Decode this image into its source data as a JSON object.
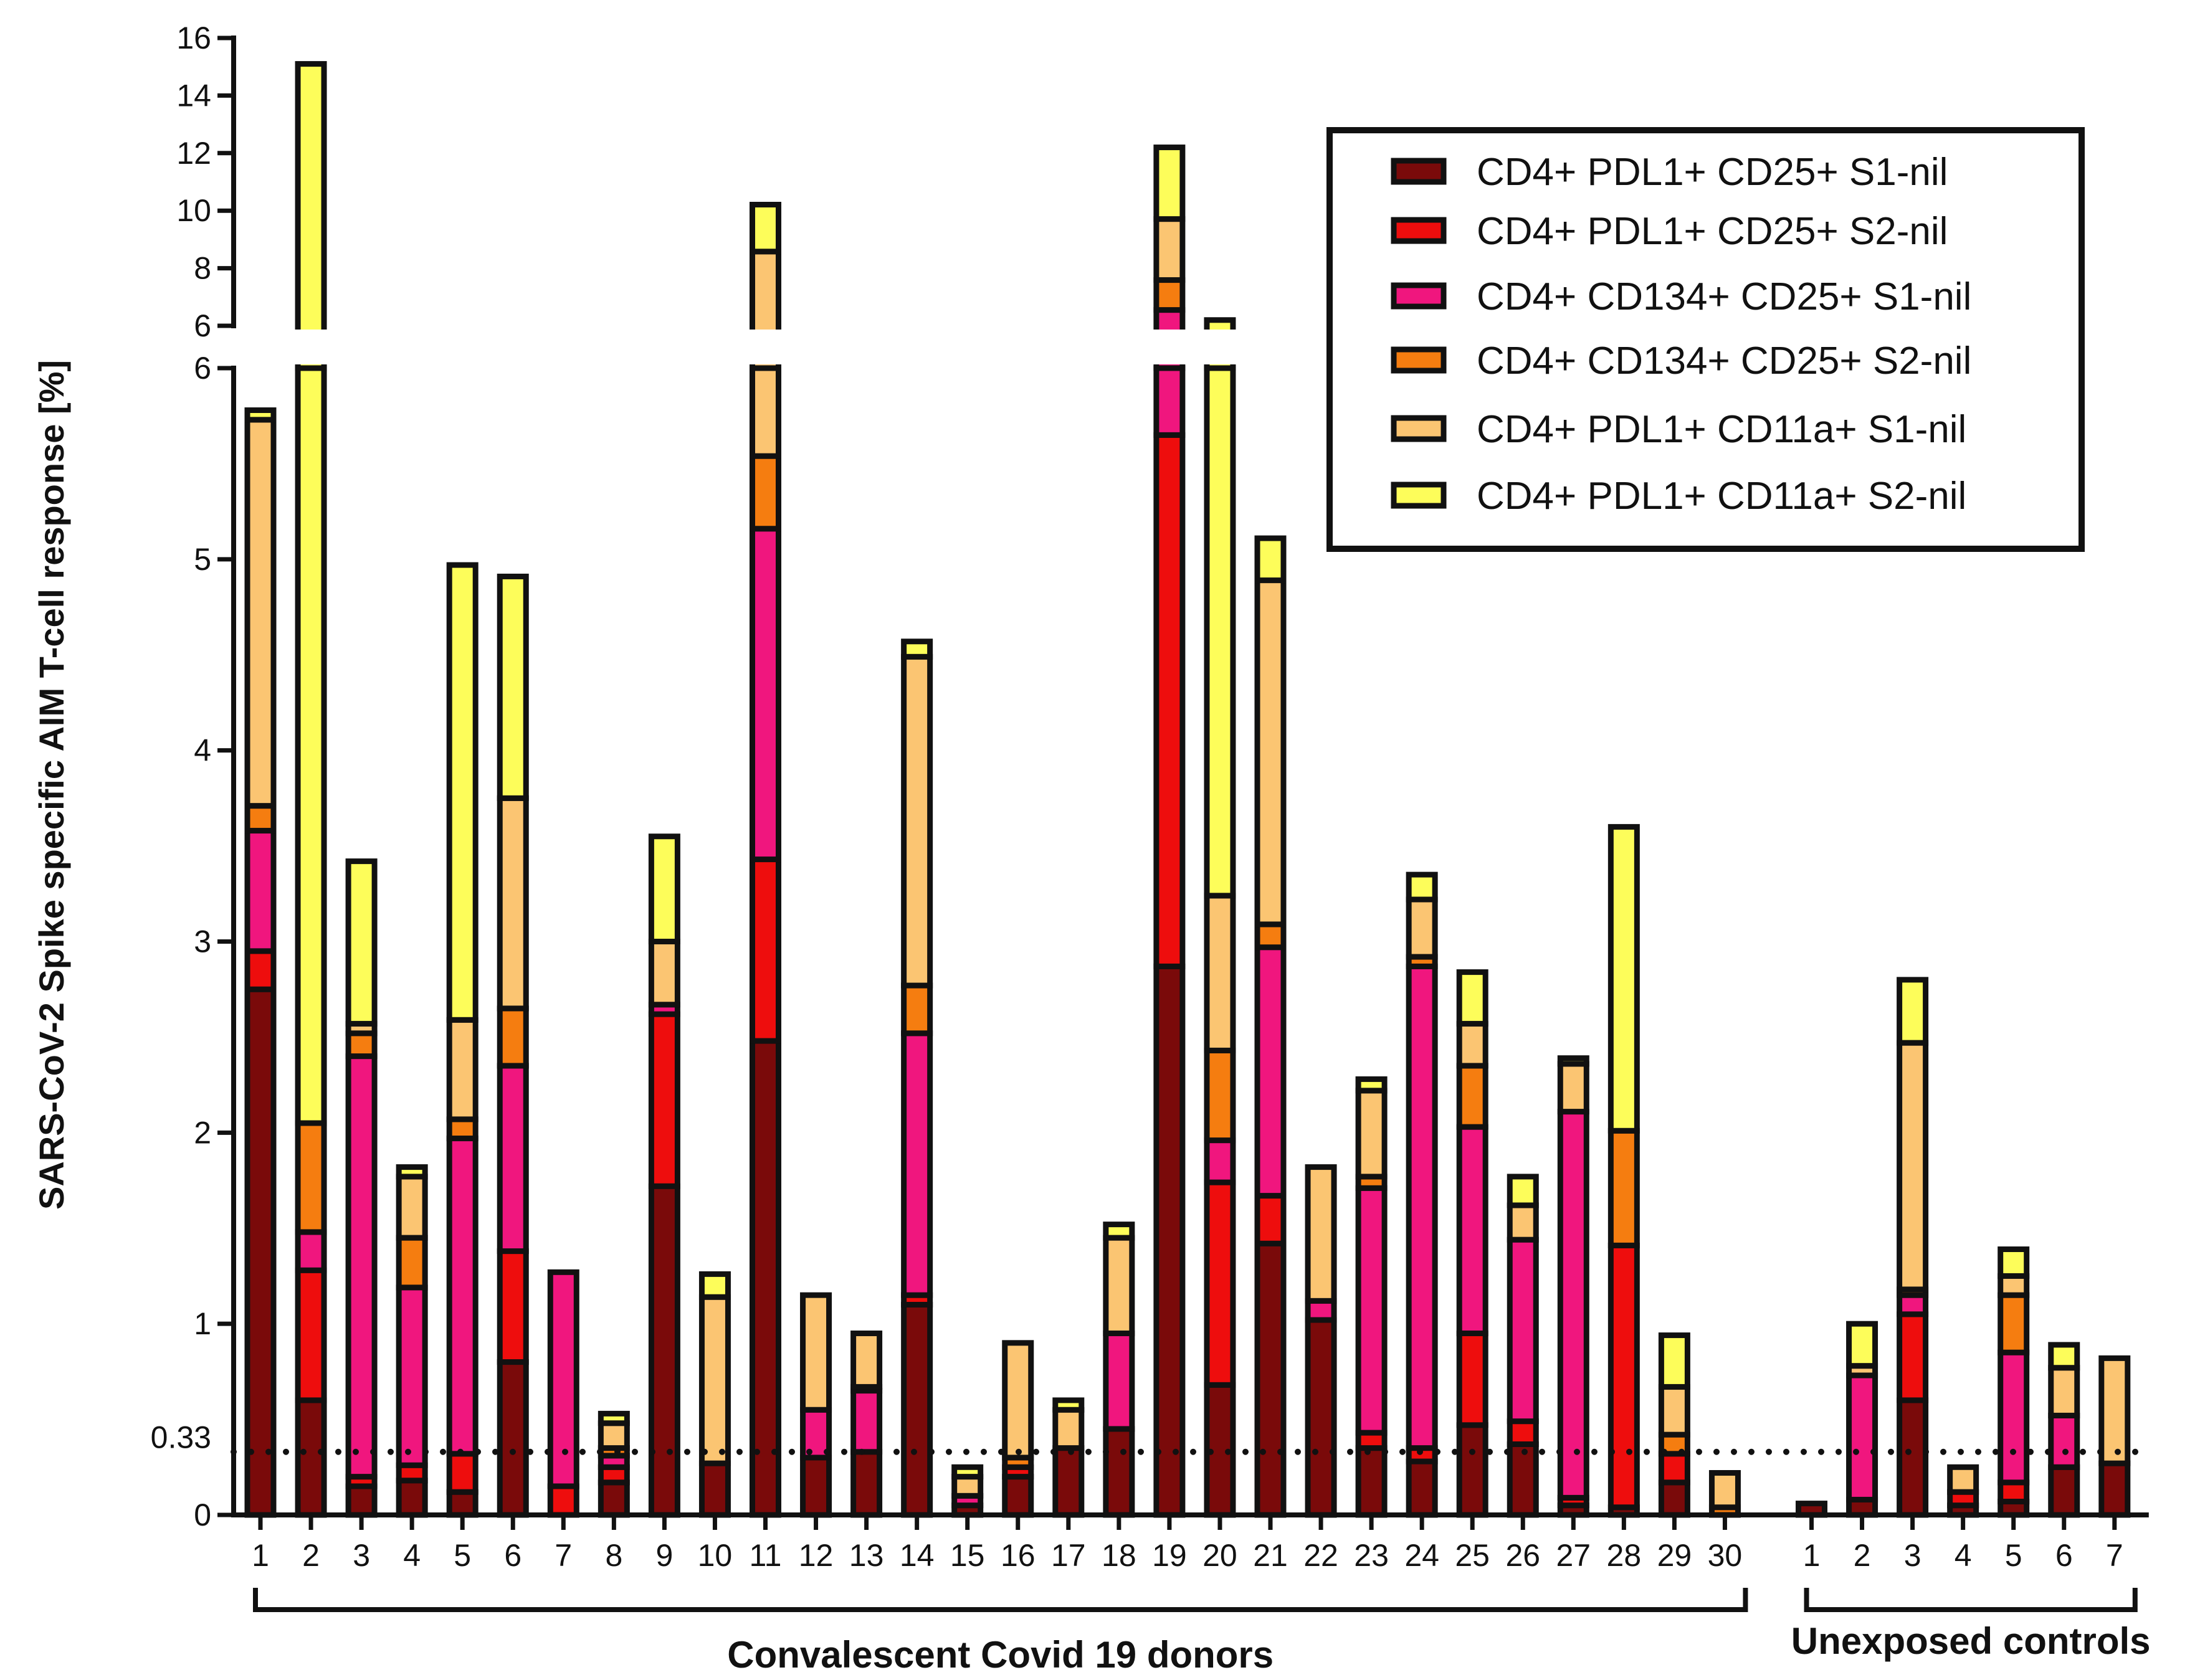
{
  "chart_data": {
    "type": "bar",
    "stacked": true,
    "ylabel": "SARS-CoV-2 Spike specific AIM T-cell response [%]",
    "y_axis_break": {
      "lower_range": [
        0,
        6
      ],
      "upper_range": [
        6,
        16
      ]
    },
    "y_ticks_lower": [
      0,
      1,
      2,
      3,
      4,
      5,
      6
    ],
    "y_ticks_upper": [
      6,
      8,
      10,
      12,
      14,
      16
    ],
    "reference_line": {
      "value": 0.33,
      "label": "0.33",
      "style": "dotted"
    },
    "groups": [
      {
        "name": "Convalescent Covid 19 donors",
        "categories": [
          "1",
          "2",
          "3",
          "4",
          "5",
          "6",
          "7",
          "8",
          "9",
          "10",
          "11",
          "12",
          "13",
          "14",
          "15",
          "16",
          "17",
          "18",
          "19",
          "20",
          "21",
          "22",
          "23",
          "24",
          "25",
          "26",
          "27",
          "28",
          "29",
          "30"
        ]
      },
      {
        "name": "Unexposed controls",
        "categories": [
          "1",
          "2",
          "3",
          "4",
          "5",
          "6",
          "7"
        ]
      }
    ],
    "series": [
      {
        "name": "CD4+ PDL1+ CD25+ S1-nil",
        "color": "#7a0a0a",
        "values": [
          2.75,
          0.6,
          0.15,
          0.18,
          0.12,
          0.8,
          0,
          0.17,
          1.72,
          0.27,
          2.48,
          0.3,
          0.33,
          1.1,
          0.05,
          0.2,
          0.35,
          0.45,
          2.87,
          0.68,
          1.42,
          1.02,
          0.35,
          0.28,
          0.47,
          0.37,
          0.05,
          0.04,
          0.17,
          0,
          0.06,
          0.08,
          0.6,
          0.05,
          0.07,
          0.25,
          0.27
        ]
      },
      {
        "name": "CD4+ PDL1+ CD25+ S2-nil",
        "color": "#ee0d0d",
        "values": [
          0.2,
          0.68,
          0.05,
          0.08,
          0.2,
          0.58,
          0.15,
          0.08,
          0.9,
          0,
          0.95,
          0,
          0,
          0.05,
          0,
          0.05,
          0,
          0,
          2.78,
          1.06,
          0.25,
          0,
          0.08,
          0.07,
          0.48,
          0.12,
          0.04,
          1.37,
          0.15,
          0,
          0,
          0,
          0.45,
          0.07,
          0.1,
          0,
          0
        ]
      },
      {
        "name": "CD4+ CD134+ CD25+ S1-nil",
        "color": "#f0167e",
        "values": [
          0.63,
          0.2,
          2.2,
          0.93,
          1.65,
          0.97,
          1.12,
          0.06,
          0.05,
          0,
          1.73,
          0.25,
          0.32,
          1.37,
          0.05,
          0,
          0,
          0.5,
          0.9,
          0.22,
          1.3,
          0.1,
          1.28,
          2.52,
          1.08,
          0.95,
          2.02,
          0,
          0,
          0,
          0,
          0.65,
          0.1,
          0,
          0.68,
          0.27,
          0
        ]
      },
      {
        "name": "CD4+ CD134+ CD25+ S2-nil",
        "color": "#f57d10",
        "values": [
          0.13,
          0.57,
          0.12,
          0.26,
          0.1,
          0.3,
          0,
          0.04,
          0,
          0,
          0.38,
          0,
          0.02,
          0.25,
          0,
          0.05,
          0,
          0,
          1.04,
          0.47,
          0.12,
          0,
          0.06,
          0.05,
          0.32,
          0,
          0,
          0.6,
          0.1,
          0.04,
          0,
          0,
          0.03,
          0,
          0.3,
          0,
          0
        ]
      },
      {
        "name": "CD4+ PDL1+ CD11a+ S1-nil",
        "color": "#fbc572",
        "values": [
          2.02,
          0,
          0.05,
          0.32,
          0.52,
          1.1,
          0,
          0.13,
          0.33,
          0.87,
          3.04,
          0.6,
          0.28,
          1.72,
          0.1,
          0.6,
          0.2,
          0.5,
          2.12,
          0.81,
          1.8,
          0.7,
          0.45,
          0.3,
          0.22,
          0.18,
          0.25,
          0,
          0.25,
          0.18,
          0,
          0.05,
          1.29,
          0.13,
          0.1,
          0.25,
          0.55
        ]
      },
      {
        "name": "CD4+ PDL1+ CD11a+ S2-nil",
        "color": "#fdfd5a",
        "values": [
          0.05,
          13.05,
          0.85,
          0.05,
          2.38,
          1.16,
          0,
          0.05,
          0.55,
          0.12,
          1.63,
          0,
          0,
          0.08,
          0.05,
          0,
          0.05,
          0.07,
          2.49,
          2.96,
          0.22,
          0,
          0.06,
          0.13,
          0.27,
          0.15,
          0.03,
          1.59,
          0.27,
          0,
          0,
          0.22,
          0.33,
          0,
          0.14,
          0.12,
          0
        ]
      }
    ]
  },
  "legend": {
    "position": "top-right"
  }
}
